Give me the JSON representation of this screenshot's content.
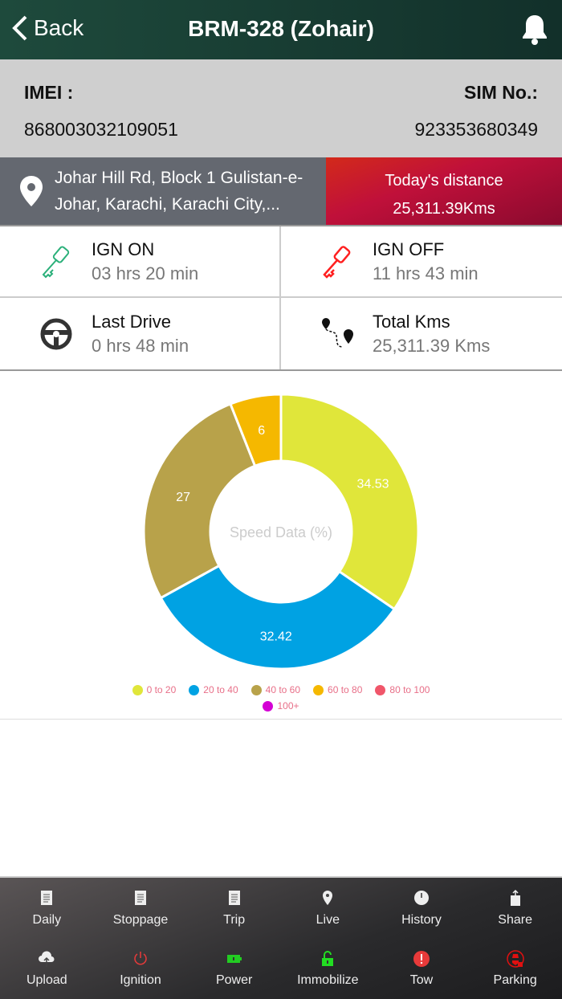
{
  "header": {
    "back_label": "Back",
    "title": "BRM-328 (Zohair)"
  },
  "device": {
    "imei_label": "IMEI :",
    "imei": "868003032109051",
    "sim_label": "SIM No.:",
    "sim": "923353680349"
  },
  "location": {
    "address": "Johar Hill Rd, Block 1 Gulistan-e-Johar, Karachi, Karachi City,...",
    "distance_label": "Today's distance",
    "distance": "25,311.39Kms"
  },
  "stats": [
    {
      "label": "IGN ON",
      "value": "03 hrs 20 min",
      "icon": "key-icon",
      "color": "#2bb07a"
    },
    {
      "label": "IGN OFF",
      "value": "11 hrs 43 min",
      "icon": "key-icon",
      "color": "#ff2020"
    },
    {
      "label": "Last Drive",
      "value": "0 hrs 48 min",
      "icon": "steering-wheel-icon",
      "color": "#333333"
    },
    {
      "label": "Total Kms",
      "value": "25,311.39 Kms",
      "icon": "route-icon",
      "color": "#111111"
    }
  ],
  "chart_data": {
    "type": "pie",
    "donut": true,
    "center_label": "Speed Data (%)",
    "categories": [
      "0 to 20",
      "20 to 40",
      "40 to 60",
      "60 to 80",
      "80 to 100",
      "100+"
    ],
    "values": [
      34.53,
      32.42,
      27,
      6,
      0,
      0
    ],
    "labels": [
      "34.53",
      "32.42",
      "27",
      "6",
      "",
      ""
    ],
    "colors": [
      "#e0e63a",
      "#00a2e3",
      "#b8a24a",
      "#f5b800",
      "#f0566a",
      "#d400d4"
    ],
    "legend": "bottom"
  },
  "nav": [
    {
      "label": "Daily",
      "icon": "report-icon",
      "color": "#eeeeee"
    },
    {
      "label": "Stoppage",
      "icon": "report-icon",
      "color": "#eeeeee"
    },
    {
      "label": "Trip",
      "icon": "report-icon",
      "color": "#eeeeee"
    },
    {
      "label": "Live",
      "icon": "location-pin-icon",
      "color": "#eeeeee"
    },
    {
      "label": "History",
      "icon": "clock-icon",
      "color": "#eeeeee"
    },
    {
      "label": "Share",
      "icon": "share-icon",
      "color": "#eeeeee"
    },
    {
      "label": "Upload",
      "icon": "cloud-upload-icon",
      "color": "#eeeeee"
    },
    {
      "label": "Ignition",
      "icon": "power-icon",
      "color": "#e03a3a"
    },
    {
      "label": "Power",
      "icon": "battery-icon",
      "color": "#22cc22"
    },
    {
      "label": "Immobilize",
      "icon": "unlock-icon",
      "color": "#22dd22"
    },
    {
      "label": "Tow",
      "icon": "alert-icon",
      "color": "#e83a3a"
    },
    {
      "label": "Parking",
      "icon": "spy-lock-icon",
      "color": "#e01010"
    }
  ]
}
